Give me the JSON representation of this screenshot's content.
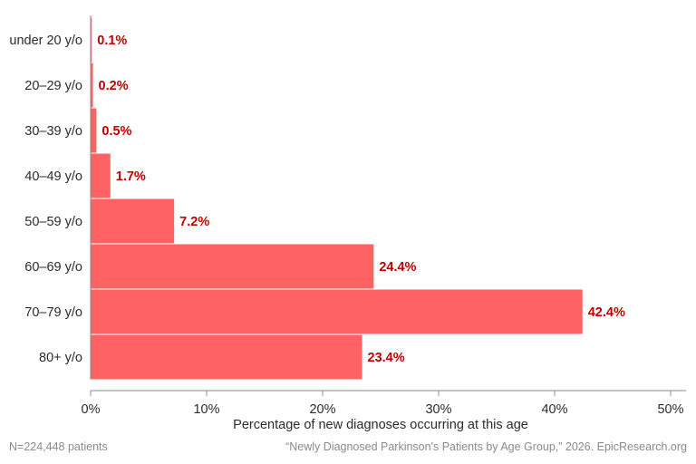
{
  "chart_data": {
    "type": "bar",
    "orientation": "horizontal",
    "categories": [
      "under 20 y/o",
      "20–29 y/o",
      "30–39 y/o",
      "40–49 y/o",
      "50–59 y/o",
      "60–69 y/o",
      "70–79 y/o",
      "80+ y/o"
    ],
    "values": [
      0.1,
      0.2,
      0.5,
      1.7,
      7.2,
      24.4,
      42.4,
      23.4
    ],
    "data_labels": [
      "0.1%",
      "0.2%",
      "0.5%",
      "1.7%",
      "7.2%",
      "24.4%",
      "42.4%",
      "23.4%"
    ],
    "xlabel": "Percentage of new diagnoses occurring at this age",
    "ylabel": "",
    "xlim": [
      0,
      50
    ],
    "x_ticks": [
      0,
      10,
      20,
      30,
      40,
      50
    ],
    "x_tick_labels": [
      "0%",
      "10%",
      "20%",
      "30%",
      "40%",
      "50%"
    ],
    "grid": false,
    "legend": "none",
    "colors": {
      "bar": "#ff6262",
      "data_label": "#c00000",
      "axis": "#888888"
    }
  },
  "footnote_left": "N=224,448 patients",
  "footnote_right": "“Newly Diagnosed Parkinson's Patients by Age Group,” 2026. EpicResearch.org"
}
